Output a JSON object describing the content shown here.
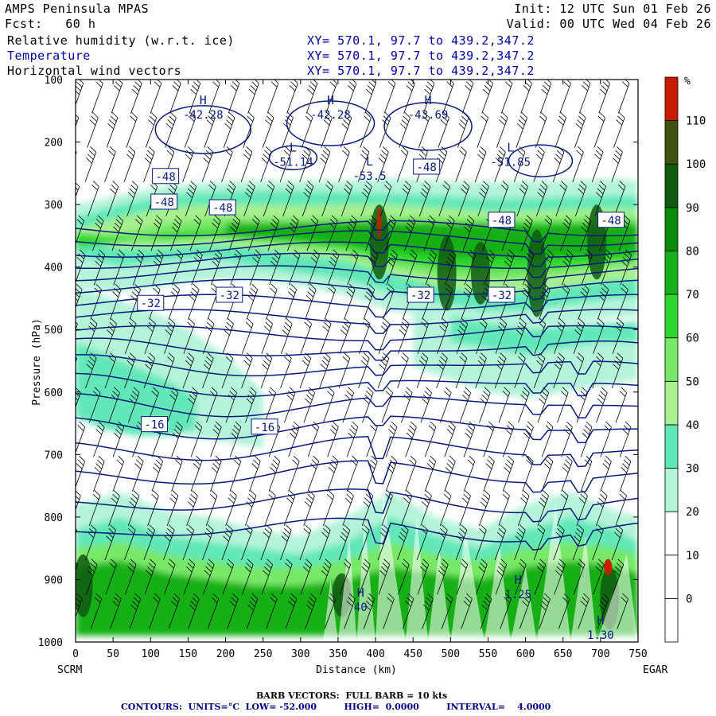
{
  "header": {
    "model": "AMPS Peninsula MPAS",
    "forecast": "Fcst:   60 h",
    "init": "Init: 12 UTC Sun 01 Feb 26",
    "valid": "Valid: 00 UTC Wed 04 Feb 26",
    "fields": [
      {
        "name": "Relative humidity (w.r.t. ice)",
        "xy": "XY= 570.1, 97.7 to 439.2,347.2"
      },
      {
        "name": "Temperature",
        "xy": "XY= 570.1, 97.7 to 439.2,347.2"
      },
      {
        "name": "Horizontal wind vectors",
        "xy": "XY= 570.1, 97.7 to 439.2,347.2"
      }
    ]
  },
  "chart_data": {
    "type": "heatmap",
    "xlabel": "Distance (km)",
    "ylabel": "Pressure (hPa)",
    "xlim": [
      0,
      750
    ],
    "ylim": [
      1000,
      100
    ],
    "x_ticks": [
      0,
      50,
      100,
      150,
      200,
      250,
      300,
      350,
      400,
      450,
      500,
      550,
      600,
      650,
      700,
      750
    ],
    "y_ticks": [
      100,
      200,
      300,
      400,
      500,
      600,
      700,
      800,
      900,
      1000
    ],
    "endpoint_left": "SCRM",
    "endpoint_right": "EGAR",
    "colorbar": {
      "unit": "%",
      "levels": [
        0,
        10,
        20,
        30,
        40,
        50,
        60,
        70,
        80,
        90,
        100,
        110
      ],
      "colors": [
        "#ffffff",
        "#ffffff",
        "#ffffff",
        "#b4f4d8",
        "#62e8b8",
        "#a8f090",
        "#78e868",
        "#2ed82e",
        "#18b018",
        "#0a8a0a",
        "#105a10",
        "#3e5212",
        "#c81c00"
      ]
    },
    "temperature_labels": [
      {
        "x": 120,
        "p": 255,
        "label": "-48"
      },
      {
        "x": 118,
        "p": 296,
        "label": "-48"
      },
      {
        "x": 196,
        "p": 305,
        "label": "-48"
      },
      {
        "x": 468,
        "p": 240,
        "label": "-48"
      },
      {
        "x": 568,
        "p": 325,
        "label": "-48"
      },
      {
        "x": 714,
        "p": 325,
        "label": "-48"
      },
      {
        "x": 205,
        "p": 445,
        "label": "-32"
      },
      {
        "x": 100,
        "p": 458,
        "label": "-32"
      },
      {
        "x": 460,
        "p": 445,
        "label": "-32"
      },
      {
        "x": 568,
        "p": 445,
        "label": "-32"
      },
      {
        "x": 105,
        "p": 652,
        "label": "-16"
      },
      {
        "x": 252,
        "p": 656,
        "label": "-16"
      }
    ],
    "extrema": [
      {
        "x": 170,
        "p": 152,
        "type": "H",
        "value": "-42.28"
      },
      {
        "x": 340,
        "p": 152,
        "type": "H",
        "value": "-42.28"
      },
      {
        "x": 470,
        "p": 152,
        "type": "H",
        "value": "-43.69"
      },
      {
        "x": 290,
        "p": 228,
        "type": "L",
        "value": "-51.14"
      },
      {
        "x": 392,
        "p": 250,
        "type": "L",
        "value": "-53.5"
      },
      {
        "x": 580,
        "p": 228,
        "type": "L",
        "value": "-51.85"
      },
      {
        "x": 380,
        "p": 940,
        "type": "H",
        "value": "40"
      },
      {
        "x": 590,
        "p": 920,
        "type": "H",
        "value": "1.25"
      },
      {
        "x": 700,
        "p": 985,
        "type": "H",
        "value": "1.30"
      }
    ]
  },
  "footer": {
    "barb": "BARB VECTORS:  FULL BARB = 10 kts",
    "contours": "CONTOURS:  UNITS=°C  LOW= -52.000         HIGH=  0.0000         INTERVAL=    4.0000"
  }
}
